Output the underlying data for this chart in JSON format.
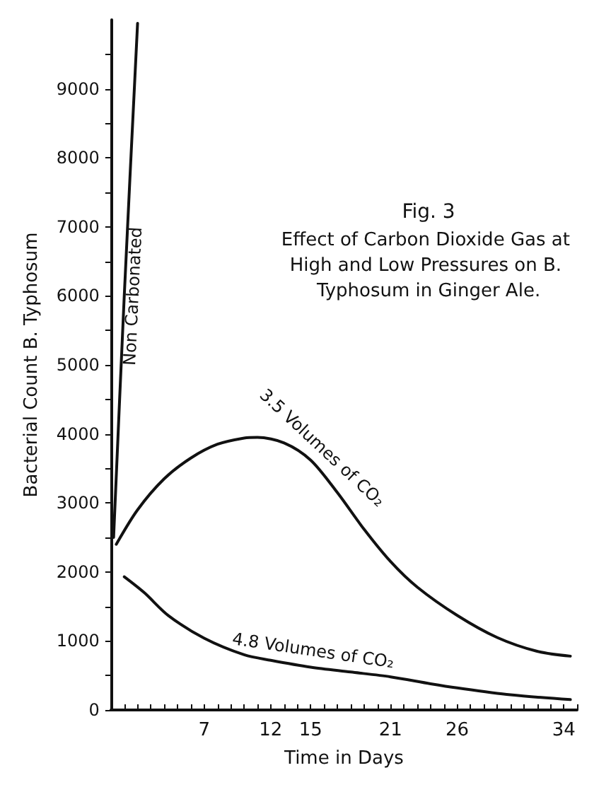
{
  "chart_data": {
    "type": "line",
    "title": "Fig. 3",
    "subtitle": "Effect of Carbon Dioxide Gas at High and Low Pressures on B. Typhosum in Ginger Ale.",
    "xlabel": "Time in Days",
    "ylabel": "Bacterial Count B. Typhosum",
    "xlim": [
      0,
      35
    ],
    "xticks": [
      {
        "value": 1,
        "label": null
      },
      {
        "value": 2,
        "label": null
      },
      {
        "value": 3,
        "label": null
      },
      {
        "value": 4,
        "label": null
      },
      {
        "value": 5,
        "label": null
      },
      {
        "value": 6,
        "label": null
      },
      7,
      {
        "value": 8,
        "label": null
      },
      {
        "value": 9,
        "label": null
      },
      {
        "value": 10,
        "label": null
      },
      {
        "value": 11,
        "label": null
      },
      12,
      {
        "value": 13,
        "label": null
      },
      {
        "value": 14,
        "label": null
      },
      15,
      {
        "value": 16,
        "label": null
      },
      {
        "value": 17,
        "label": null
      },
      {
        "value": 18,
        "label": null
      },
      {
        "value": 19,
        "label": null
      },
      {
        "value": 20,
        "label": null
      },
      21,
      {
        "value": 22,
        "label": null
      },
      {
        "value": 23,
        "label": null
      },
      {
        "value": 24,
        "label": null
      },
      {
        "value": 25,
        "label": null
      },
      26,
      {
        "value": 27,
        "label": null
      },
      {
        "value": 28,
        "label": null
      },
      {
        "value": 29,
        "label": null
      },
      {
        "value": 30,
        "label": null
      },
      {
        "value": 31,
        "label": null
      },
      {
        "value": 32,
        "label": null
      },
      {
        "value": 33,
        "label": null
      },
      34,
      {
        "value": 35,
        "label": null
      }
    ],
    "ylim": [
      0,
      10000
    ],
    "yticks": [
      0,
      {
        "value": 500,
        "label": null
      },
      1000,
      {
        "value": 1500,
        "label": null
      },
      2000,
      {
        "value": 2500,
        "label": null
      },
      3000,
      {
        "value": 3500,
        "label": null
      },
      4000,
      {
        "value": 4500,
        "label": null
      },
      5000,
      {
        "value": 5500,
        "label": null
      },
      6000,
      {
        "value": 6500,
        "label": null
      },
      7000,
      {
        "value": 7500,
        "label": null
      },
      8000,
      {
        "value": 8500,
        "label": null
      },
      9000,
      {
        "value": 9500,
        "label": null
      }
    ],
    "grid": false,
    "legend": false,
    "marker": "none",
    "line_style": "solid",
    "series": [
      {
        "name": "Non Carbonated",
        "color": "#111111",
        "x": [
          0.2,
          1,
          2
        ],
        "values": [
          2500,
          6000,
          9950
        ]
      },
      {
        "name": "3.5 Volumes of CO₂",
        "color": "#111111",
        "x": [
          0.4,
          2,
          4,
          6,
          8,
          10,
          11,
          13,
          15,
          17,
          19,
          21,
          23,
          26,
          29,
          32,
          34.5
        ],
        "values": [
          2400,
          2900,
          3350,
          3650,
          3850,
          3940,
          3950,
          3870,
          3620,
          3150,
          2620,
          2150,
          1780,
          1370,
          1050,
          850,
          780
        ]
      },
      {
        "name": "4.8 Volumes of CO₂",
        "color": "#111111",
        "x": [
          1,
          2.5,
          4.3,
          7,
          10,
          12,
          15,
          18,
          21,
          24,
          26,
          30,
          34.5
        ],
        "values": [
          1930,
          1700,
          1370,
          1040,
          800,
          720,
          620,
          550,
          480,
          380,
          320,
          220,
          150
        ]
      }
    ]
  }
}
